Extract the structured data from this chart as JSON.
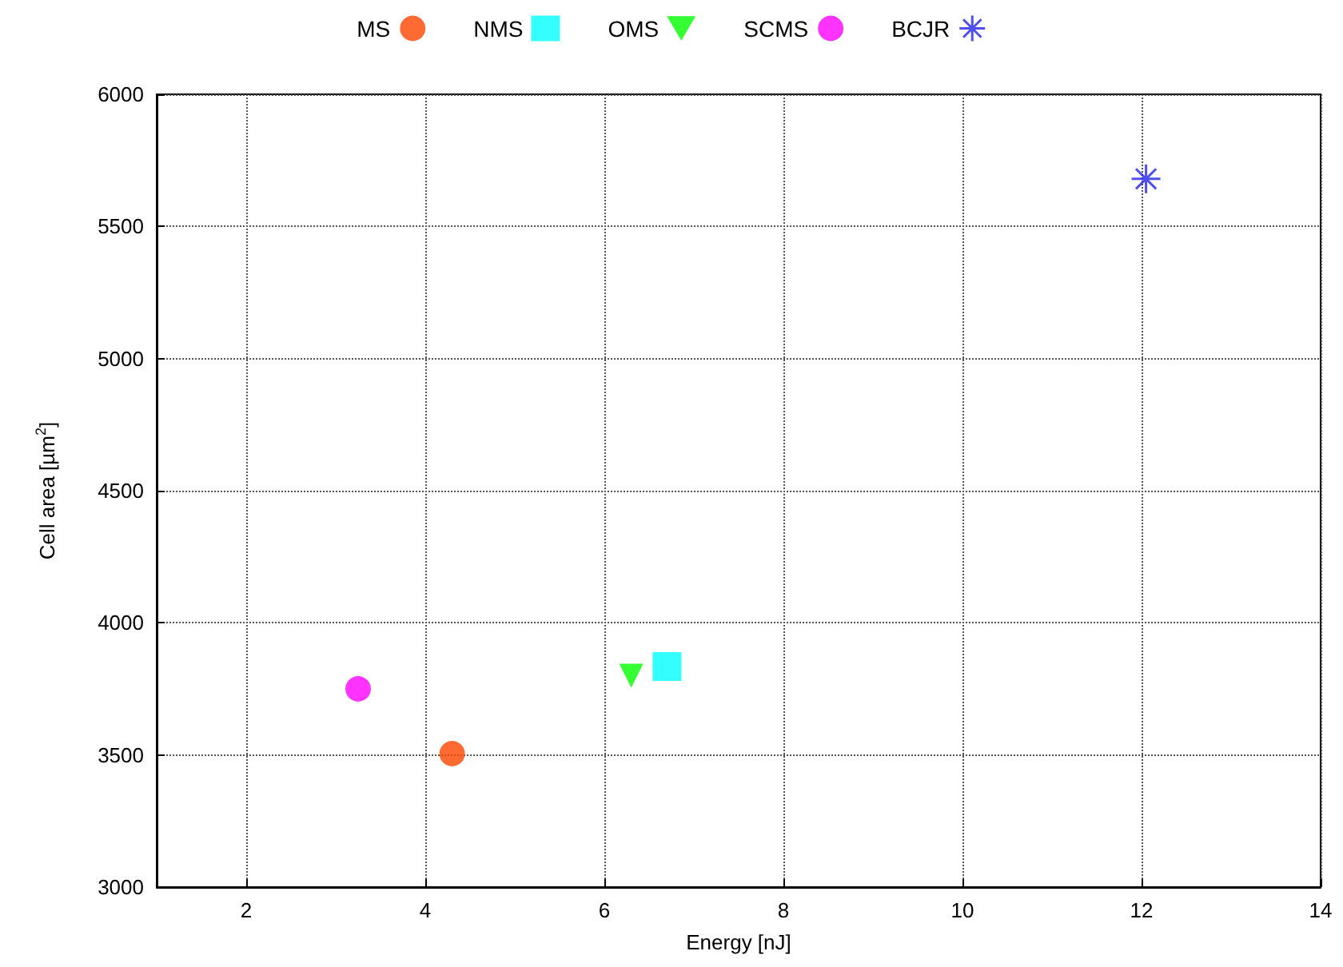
{
  "chart_data": {
    "type": "scatter",
    "xlabel": "Energy [nJ]",
    "ylabel": "Cell area [µm$^{2}$]",
    "series": [
      {
        "name": "MS",
        "color": "#ff4500",
        "marker": "circle",
        "x": [
          4.3
        ],
        "values": [
          3505
        ]
      },
      {
        "name": "NMS",
        "color": "#00ffff",
        "marker": "square",
        "x": [
          6.7
        ],
        "values": [
          3835
        ]
      },
      {
        "name": "OMS",
        "color": "#00ff00",
        "marker": "triangle",
        "x": [
          6.3
        ],
        "values": [
          3800
        ]
      },
      {
        "name": "SCMS",
        "color": "#ff00ff",
        "marker": "circle",
        "x": [
          3.25
        ],
        "values": [
          3750
        ]
      },
      {
        "name": "BCJR",
        "color": "#2222ee",
        "marker": "cross",
        "x": [
          12.05
        ],
        "values": [
          5680
        ]
      }
    ],
    "xlim": [
      1,
      14
    ],
    "xticks": [
      2,
      4,
      6,
      8,
      10,
      12,
      14
    ],
    "ylim": [
      3000,
      6000
    ],
    "yticks": [
      3000,
      3500,
      4000,
      4500,
      5000,
      5500,
      6000
    ],
    "grid": true,
    "legend": "top"
  }
}
